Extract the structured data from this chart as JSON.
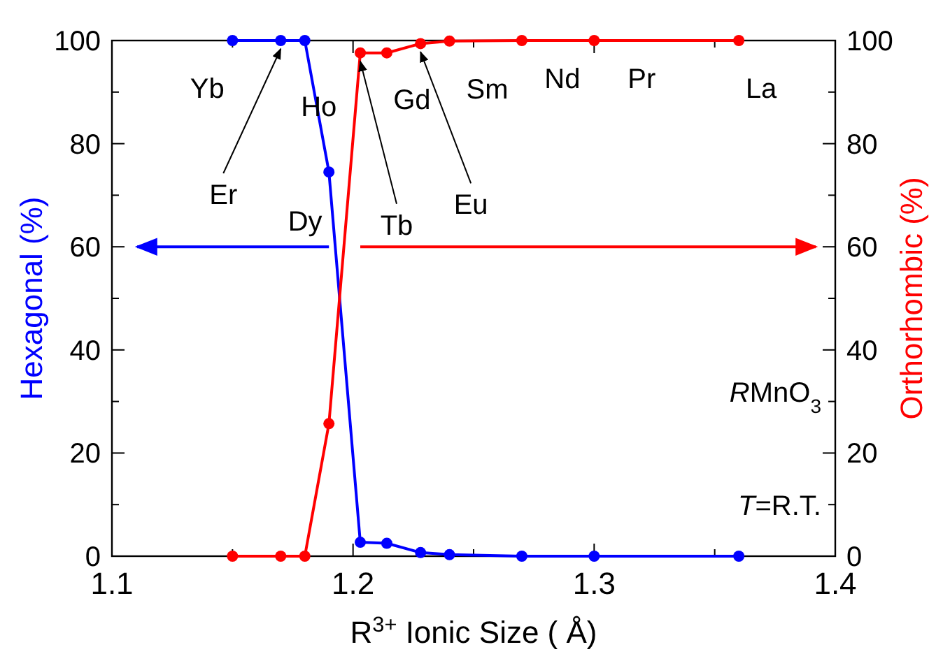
{
  "chart_data": {
    "type": "line",
    "xlabel": "R$^{3+}$ Ionic Size ( Å)",
    "ylabel": "Hexagonal (%)",
    "y2label": "Orthorhombic (%)",
    "x": [
      1.15,
      1.17,
      1.18,
      1.19,
      1.203,
      1.214,
      1.228,
      1.24,
      1.27,
      1.3,
      1.36
    ],
    "series": [
      {
        "color": "#0000ff",
        "values": [
          100,
          100,
          100,
          74.5,
          2.7,
          2.5,
          0.7,
          0.3,
          0,
          0,
          0
        ]
      },
      {
        "color": "#ff0000",
        "axis": "y2",
        "values": [
          0,
          0,
          0,
          25.7,
          97.6,
          97.6,
          99.4,
          99.9,
          100,
          100,
          100
        ]
      }
    ],
    "xlim": [
      1.1,
      1.4
    ],
    "xticks": [
      1.1,
      {
        "value": 1.15,
        "label": null
      },
      1.2,
      {
        "value": 1.25,
        "label": null
      },
      1.3,
      {
        "value": 1.35,
        "label": null
      },
      1.4
    ],
    "ylim": [
      0,
      100
    ],
    "yticks": [
      0,
      {
        "value": 10,
        "label": null
      },
      20,
      {
        "value": 30,
        "label": null
      },
      40,
      {
        "value": 50,
        "label": null
      },
      60,
      {
        "value": 70,
        "label": null
      },
      80,
      {
        "value": 90,
        "label": null
      },
      100
    ],
    "y2lim": [
      0,
      100
    ],
    "y2ticks": [
      0,
      {
        "value": 10,
        "label": null
      },
      20,
      {
        "value": 30,
        "label": null
      },
      40,
      {
        "value": 50,
        "label": null
      },
      60,
      {
        "value": 70,
        "label": null
      },
      80,
      {
        "value": 90,
        "label": null
      },
      100
    ],
    "marker": "circle",
    "line_style": "solid",
    "grid": false,
    "annotations": [
      {
        "text": "Yb",
        "x": 1.15,
        "y": 100
      },
      {
        "text": "Er",
        "x": 1.17,
        "y": 100
      },
      {
        "text": "Ho",
        "x": 1.18,
        "y": 100
      },
      {
        "text": "Dy",
        "x": 1.19,
        "y": 74.5
      },
      {
        "text": "Tb",
        "x": 1.203,
        "y": 97.6
      },
      {
        "text": "Gd",
        "x": 1.214,
        "y": 97.6
      },
      {
        "text": "Eu",
        "x": 1.228,
        "y": 99.4
      },
      {
        "text": "Sm",
        "x": 1.24,
        "y": 99.9
      },
      {
        "text": "Nd",
        "x": 1.27,
        "y": 100
      },
      {
        "text": "Pr",
        "x": 1.3,
        "y": 100
      },
      {
        "text": "La",
        "x": 1.36,
        "y": 100
      },
      "RMnO$_{3}$",
      "T=R.T."
    ]
  }
}
